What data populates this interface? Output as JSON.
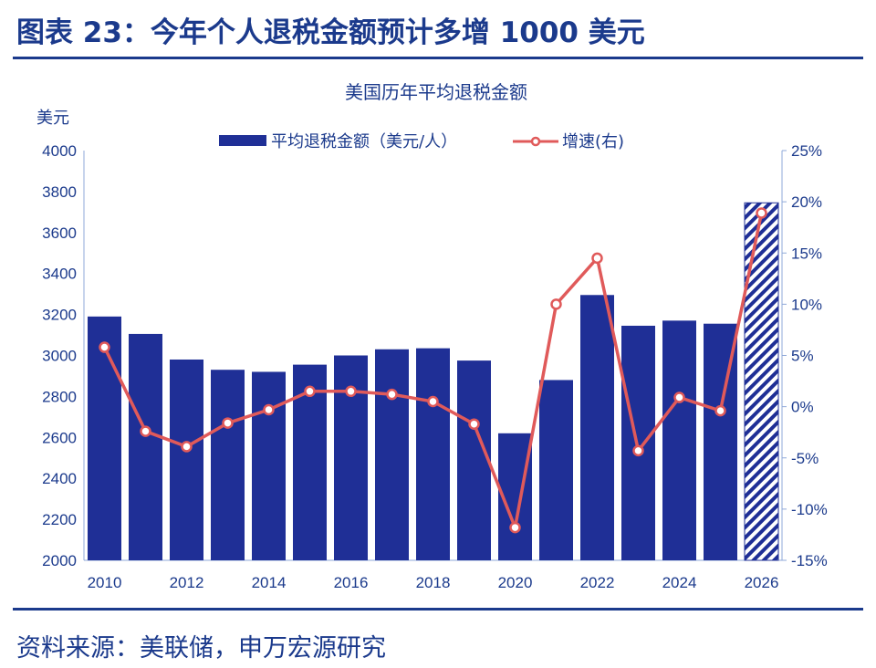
{
  "figure_title": "图表 23：今年个人退税金额预计多增 1000 美元",
  "source": "资料来源：美联储，申万宏源研究",
  "colors": {
    "bar": "#1f2f96",
    "line": "#e05a5a",
    "text": "#1b3a8c"
  },
  "chart_data": {
    "type": "bar+line",
    "title": "美国历年平均退税金额",
    "ylabel_left": "美元",
    "ylim_left": [
      2000,
      4000
    ],
    "ylim_right": [
      -15,
      25
    ],
    "left_ticks": [
      "2000",
      "2200",
      "2400",
      "2600",
      "2800",
      "3000",
      "3200",
      "3400",
      "3600",
      "3800",
      "4000"
    ],
    "right_ticks": [
      "-15%",
      "-10%",
      "-5%",
      "0%",
      "5%",
      "10%",
      "15%",
      "20%",
      "25%"
    ],
    "x_ticks": [
      "2010",
      "2012",
      "2014",
      "2016",
      "2018",
      "2020",
      "2022",
      "2024",
      "2026"
    ],
    "legend_placement": "top",
    "categories": [
      2010,
      2011,
      2012,
      2013,
      2014,
      2015,
      2016,
      2017,
      2018,
      2019,
      2020,
      2021,
      2022,
      2023,
      2024,
      2025,
      2026
    ],
    "series": [
      {
        "name": "平均退税金额（美元/人）",
        "type": "bar",
        "axis": "left",
        "values": [
          3190,
          3105,
          2980,
          2930,
          2920,
          2955,
          3000,
          3030,
          3035,
          2975,
          2620,
          2880,
          3295,
          3145,
          3170,
          3155,
          3745
        ],
        "hatched_categories": [
          2026
        ]
      },
      {
        "name": "增速(右)",
        "type": "line",
        "axis": "right",
        "unit": "%",
        "values": [
          5.8,
          -2.4,
          -3.9,
          -1.6,
          -0.3,
          1.5,
          1.5,
          1.2,
          0.5,
          -1.7,
          -11.8,
          10.0,
          14.5,
          -4.3,
          0.9,
          -0.4,
          18.9
        ]
      }
    ]
  }
}
